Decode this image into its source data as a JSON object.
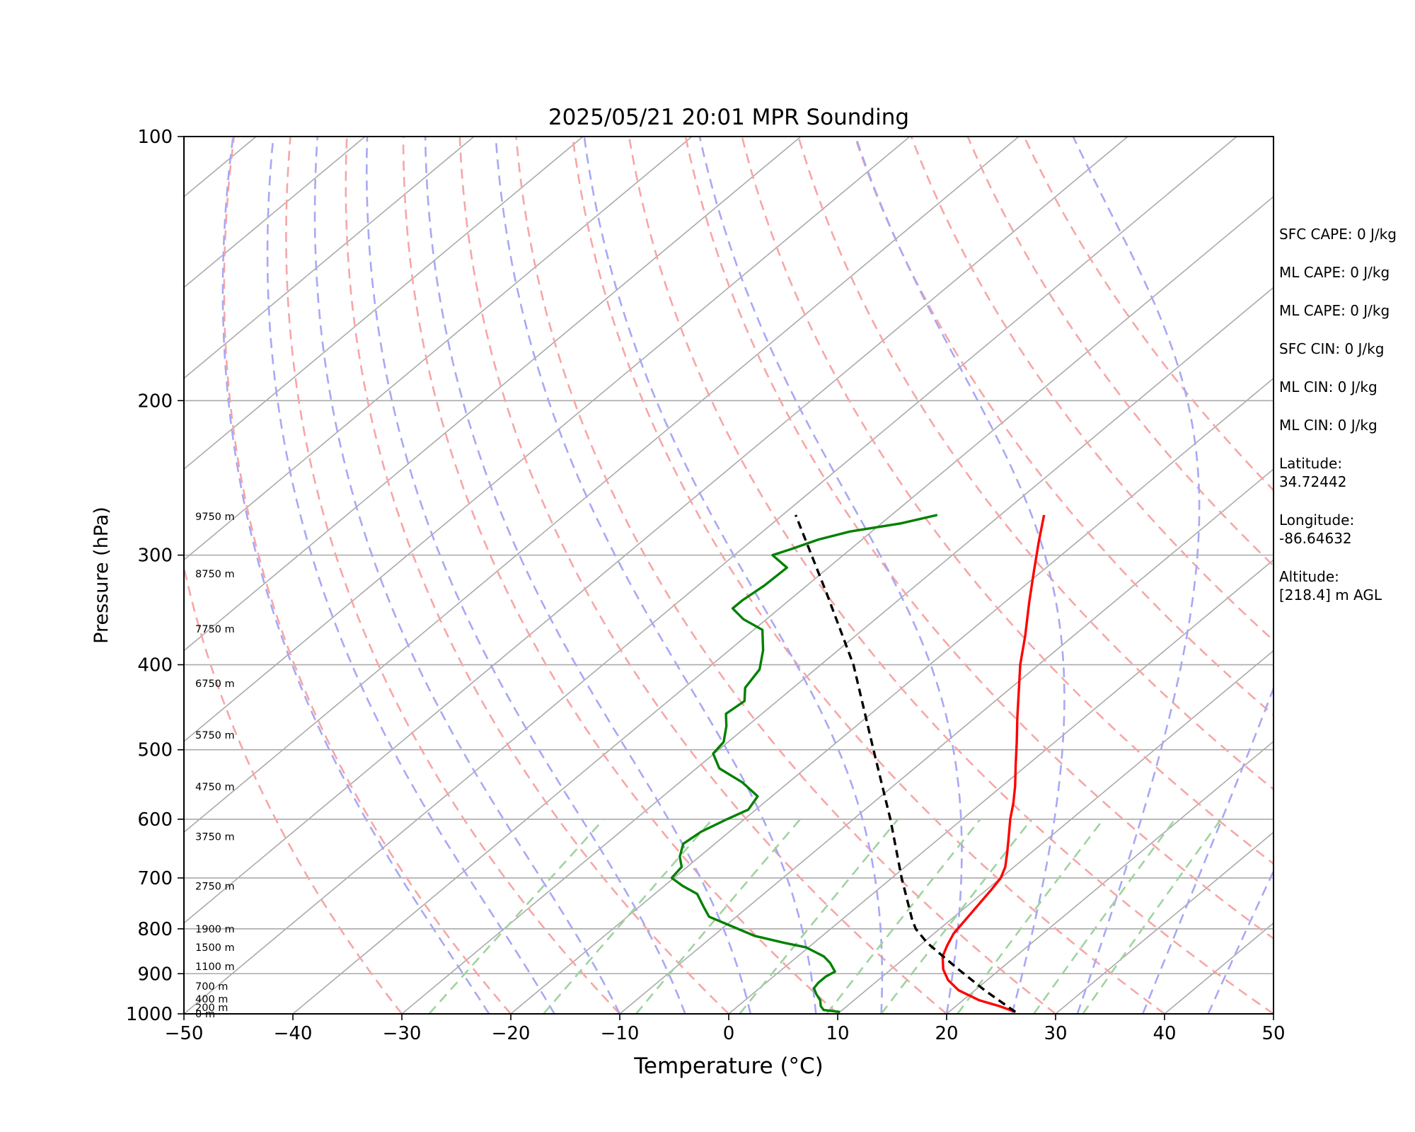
{
  "chart_data": {
    "type": "skew-t",
    "title": "2025/05/21 20:01 MPR Sounding",
    "xlabel": "Temperature (°C)",
    "ylabel": "Pressure (hPa)",
    "xlim": [
      -50,
      50
    ],
    "ylim": [
      1000,
      100
    ],
    "x_ticks": [
      "−50",
      "−40",
      "−30",
      "−20",
      "−10",
      "0",
      "10",
      "20",
      "30",
      "40",
      "50"
    ],
    "y_ticks": [
      "100",
      "200",
      "300",
      "400",
      "500",
      "600",
      "700",
      "800",
      "900",
      "1000"
    ],
    "y_tick_values": [
      100,
      200,
      300,
      400,
      500,
      600,
      700,
      800,
      900,
      1000
    ],
    "height_labels": [
      {
        "label": "9750 m",
        "p": 271
      },
      {
        "label": "8750 m",
        "p": 315
      },
      {
        "label": "7750 m",
        "p": 364
      },
      {
        "label": "6750 m",
        "p": 420
      },
      {
        "label": "5750 m",
        "p": 481
      },
      {
        "label": "4750 m",
        "p": 551
      },
      {
        "label": "3750 m",
        "p": 628
      },
      {
        "label": "2750 m",
        "p": 715
      },
      {
        "label": "1900 m",
        "p": 800
      },
      {
        "label": "1500 m",
        "p": 840
      },
      {
        "label": "1100 m",
        "p": 883
      },
      {
        "label": "700 m",
        "p": 930
      },
      {
        "label": "400 m",
        "p": 962
      },
      {
        "label": "200 m",
        "p": 983
      },
      {
        "label": "0 m",
        "p": 1000
      }
    ],
    "series": [
      {
        "name": "",
        "color": "#ff0000",
        "data": [
          [
            995,
            26.1
          ],
          [
            980,
            24.0
          ],
          [
            965,
            21.5
          ],
          [
            940,
            18.5
          ],
          [
            915,
            16.4
          ],
          [
            890,
            14.8
          ],
          [
            860,
            13.3
          ],
          [
            835,
            12.5
          ],
          [
            810,
            11.8
          ],
          [
            790,
            11.5
          ],
          [
            770,
            11.2
          ],
          [
            745,
            10.8
          ],
          [
            720,
            10.4
          ],
          [
            700,
            10.0
          ],
          [
            680,
            9.2
          ],
          [
            655,
            7.8
          ],
          [
            630,
            6.3
          ],
          [
            600,
            4.4
          ],
          [
            575,
            2.9
          ],
          [
            550,
            1.2
          ],
          [
            520,
            -1.1
          ],
          [
            490,
            -3.5
          ],
          [
            460,
            -6.1
          ],
          [
            430,
            -8.8
          ],
          [
            400,
            -11.7
          ],
          [
            370,
            -14.5
          ],
          [
            340,
            -17.7
          ],
          [
            315,
            -20.5
          ],
          [
            290,
            -23.5
          ],
          [
            270,
            -26.0
          ]
        ]
      },
      {
        "name": "",
        "color": "#008000",
        "data": [
          [
            995,
            10.0
          ],
          [
            990,
            8.3
          ],
          [
            980,
            7.6
          ],
          [
            965,
            6.9
          ],
          [
            950,
            5.9
          ],
          [
            935,
            5.0
          ],
          [
            922,
            4.8
          ],
          [
            907,
            4.8
          ],
          [
            895,
            5.1
          ],
          [
            875,
            3.7
          ],
          [
            860,
            2.4
          ],
          [
            850,
            1.1
          ],
          [
            840,
            -0.2
          ],
          [
            830,
            -2.7
          ],
          [
            815,
            -6.2
          ],
          [
            795,
            -9.3
          ],
          [
            775,
            -12.5
          ],
          [
            755,
            -14.1
          ],
          [
            730,
            -16.1
          ],
          [
            715,
            -18.3
          ],
          [
            700,
            -20.2
          ],
          [
            680,
            -20.5
          ],
          [
            662,
            -21.8
          ],
          [
            640,
            -22.9
          ],
          [
            620,
            -22.6
          ],
          [
            600,
            -21.6
          ],
          [
            585,
            -20.7
          ],
          [
            565,
            -21.3
          ],
          [
            545,
            -24.2
          ],
          [
            525,
            -27.9
          ],
          [
            505,
            -30.1
          ],
          [
            490,
            -30.4
          ],
          [
            470,
            -31.9
          ],
          [
            455,
            -33.3
          ],
          [
            440,
            -33.0
          ],
          [
            425,
            -34.4
          ],
          [
            405,
            -35.1
          ],
          [
            385,
            -36.9
          ],
          [
            365,
            -39.2
          ],
          [
            355,
            -42.1
          ],
          [
            345,
            -44.3
          ],
          [
            338,
            -44.3
          ],
          [
            325,
            -43.9
          ],
          [
            310,
            -43.8
          ],
          [
            300,
            -46.5
          ],
          [
            295,
            -45.4
          ],
          [
            288,
            -44.0
          ],
          [
            282,
            -42.0
          ],
          [
            276,
            -38.2
          ],
          [
            270,
            -35.8
          ]
        ]
      },
      {
        "name": "",
        "color": "#000000",
        "data": [
          [
            995,
            26.1
          ],
          [
            940,
            20.9
          ],
          [
            890,
            16.2
          ],
          [
            830,
            10.4
          ],
          [
            800,
            7.8
          ],
          [
            780,
            6.4
          ],
          [
            700,
            0.9
          ],
          [
            600,
            -6.6
          ],
          [
            500,
            -15.8
          ],
          [
            400,
            -27.0
          ],
          [
            330,
            -37.6
          ],
          [
            270,
            -48.8
          ]
        ]
      }
    ],
    "side_stats": [
      "SFC CAPE: 0 J/kg",
      "ML CAPE: 0 J/kg",
      "ML CAPE: 0 J/kg",
      "SFC CIN: 0 J/kg",
      "ML CIN: 0 J/kg",
      "ML CIN: 0 J/kg",
      "Latitude:\n34.72442",
      "Longitude:\n-86.64632",
      "Altitude:\n[218.4] m AGL"
    ],
    "reference_lines": {
      "isobars": [
        200,
        300,
        400,
        500,
        600,
        700,
        800,
        900
      ],
      "isotherms": [
        -140,
        -130,
        -120,
        -110,
        -100,
        -90,
        -80,
        -70,
        -60,
        -50,
        -40,
        -30,
        -20,
        -10,
        0,
        10,
        20,
        30,
        40
      ],
      "dry_adiabats_theta_c": [
        -30,
        -20,
        -10,
        0,
        10,
        20,
        30,
        40,
        50,
        60,
        70,
        80,
        90,
        100,
        110,
        120
      ],
      "moist_adiabats_start_c": [
        -22,
        -16,
        -10,
        -4,
        2,
        8,
        14,
        20,
        26,
        32,
        38,
        44
      ],
      "mixing_ratio_start_c": [
        -27.5,
        -17,
        -8.5,
        1,
        9,
        14,
        21,
        28,
        32.5
      ],
      "colors": {
        "isotherm": "#aaaaaa",
        "isobar": "#aaaaaa",
        "dry_adiabat": "#f7a6a6",
        "moist_adiabat": "#a8a8f5",
        "mixing_ratio": "#9fd39f"
      }
    },
    "grid": true
  }
}
